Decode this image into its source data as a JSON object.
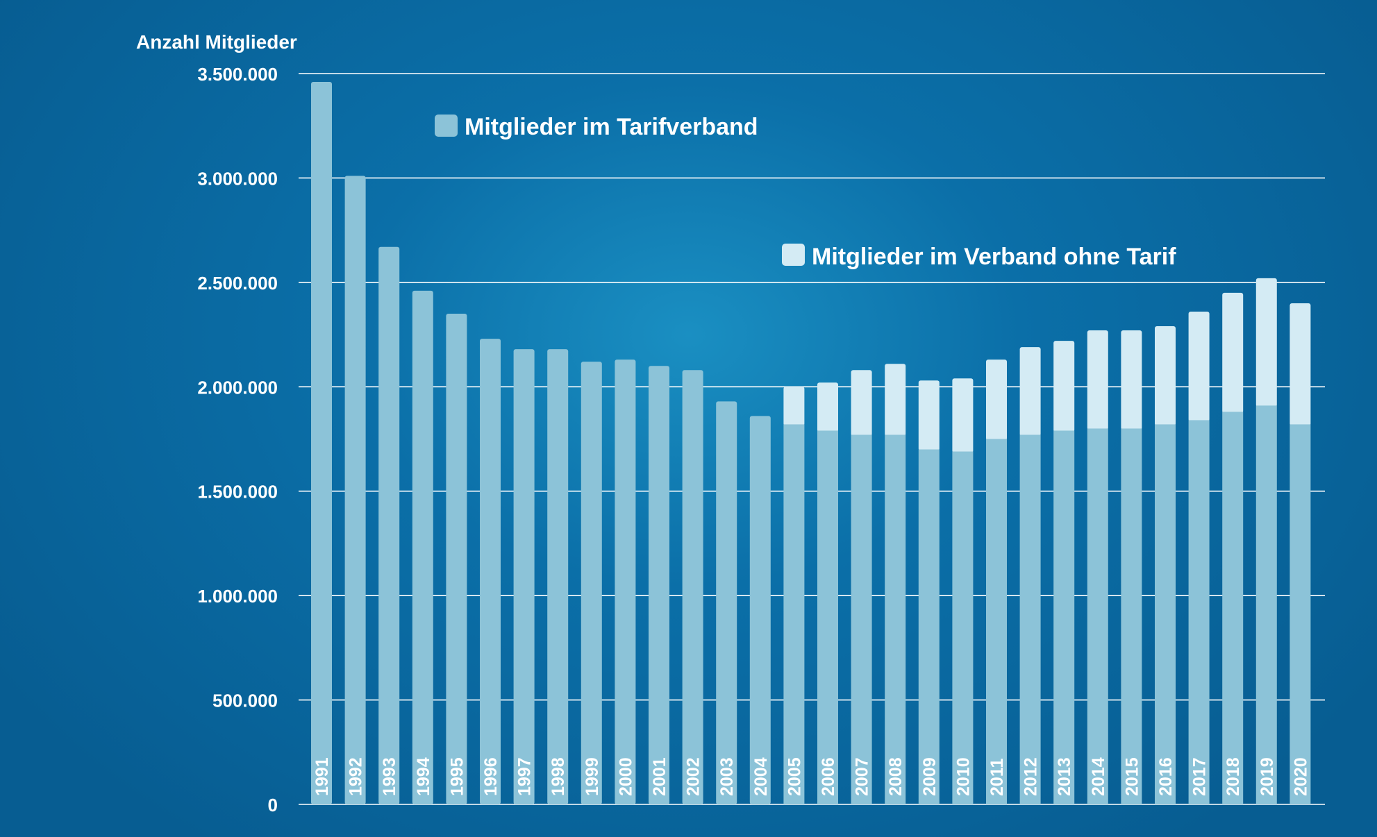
{
  "chart_data": {
    "type": "bar",
    "stacked": true,
    "title": "",
    "ylabel": "Anzahl Mitglieder",
    "xlabel": "",
    "ylim": [
      0,
      3500000
    ],
    "yticks": [
      0,
      500000,
      1000000,
      1500000,
      2000000,
      2500000,
      3000000,
      3500000
    ],
    "ytick_labels": [
      "0",
      "500.000",
      "1.000.000",
      "1.500.000",
      "2.000.000",
      "2.500.000",
      "3.000.000",
      "3.500.000"
    ],
    "grid": true,
    "categories": [
      "1991",
      "1992",
      "1993",
      "1994",
      "1995",
      "1996",
      "1997",
      "1998",
      "1999",
      "2000",
      "2001",
      "2002",
      "2003",
      "2004",
      "2005",
      "2006",
      "2007",
      "2008",
      "2009",
      "2010",
      "2011",
      "2012",
      "2013",
      "2014",
      "2015",
      "2016",
      "2017",
      "2018",
      "2019",
      "2020"
    ],
    "series": [
      {
        "name": "Mitglieder im Tarifverband",
        "color": "#8cc3d8",
        "values": [
          3460000,
          3010000,
          2670000,
          2460000,
          2350000,
          2230000,
          2180000,
          2180000,
          2120000,
          2130000,
          2100000,
          2080000,
          1930000,
          1860000,
          1820000,
          1790000,
          1770000,
          1770000,
          1700000,
          1690000,
          1750000,
          1770000,
          1790000,
          1800000,
          1800000,
          1820000,
          1840000,
          1880000,
          1910000,
          1820000
        ]
      },
      {
        "name": "Mitglieder im Verband ohne Tarif",
        "color": "#d4ebf4",
        "values": [
          0,
          0,
          0,
          0,
          0,
          0,
          0,
          0,
          0,
          0,
          0,
          0,
          0,
          0,
          180000,
          230000,
          310000,
          340000,
          330000,
          350000,
          380000,
          420000,
          430000,
          470000,
          470000,
          470000,
          520000,
          570000,
          610000,
          580000
        ]
      }
    ],
    "legend_position": "top"
  }
}
